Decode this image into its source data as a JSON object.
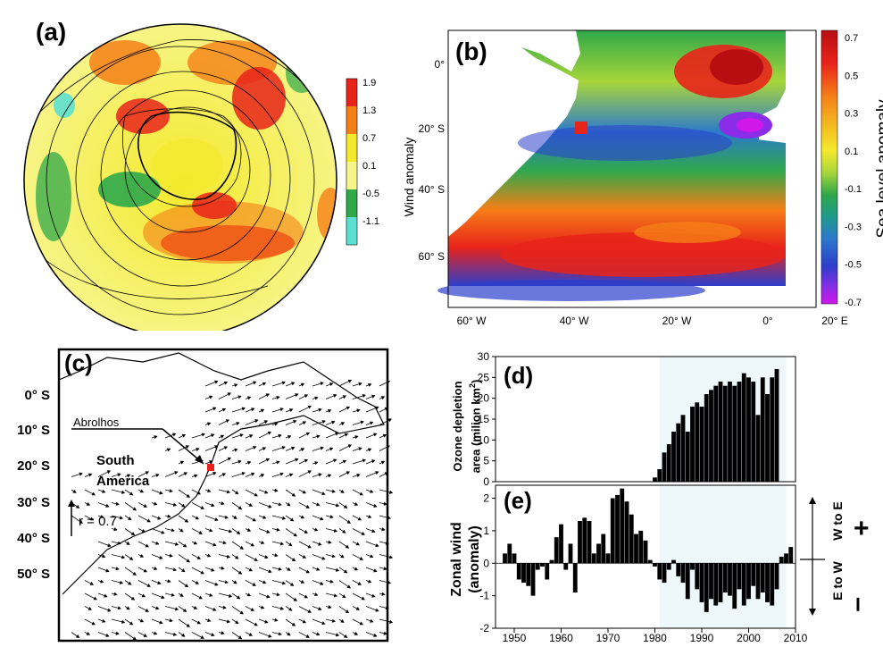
{
  "panel_labels": {
    "a": "(a)",
    "b": "(b)",
    "c": "(c)",
    "d": "(d)",
    "e": "(e)"
  },
  "colors": {
    "red": "#e8231a",
    "orange": "#f57f17",
    "yellow": "#f4e92c",
    "light_yellow": "#f7f58a",
    "green": "#2fa84a",
    "cyan": "#5de0d0",
    "blue": "#2c3fcc",
    "violet": "#d018e8",
    "shade": "#eef8fb"
  },
  "chart_data": [
    {
      "id": "a",
      "type": "heatmap",
      "colorbar": {
        "ticks": [
          "1.9",
          "1.3",
          "0.7",
          "0.1",
          "-0.5",
          "-1.1"
        ],
        "colors": [
          "#e8231a",
          "#f57f17",
          "#f4e92c",
          "#f7f58a",
          "#2fa84a",
          "#5de0d0"
        ]
      }
    },
    {
      "id": "b",
      "type": "heatmap",
      "ylabel": "Wind anomaly",
      "x_ticks": [
        "60° W",
        "40° W",
        "20° W",
        "0°",
        "20° E"
      ],
      "y_ticks": [
        "0°",
        "20° S",
        "40° S",
        "60° S"
      ],
      "colorbar": {
        "label": "Sea level anomaly",
        "ticks": [
          "0.7",
          "0.5",
          "0.3",
          "0.1",
          "-0.1",
          "-0.3",
          "-0.5",
          "-0.7"
        ],
        "colors": [
          "#b80e12",
          "#e8231a",
          "#f57f17",
          "#f4c020",
          "#f4e92c",
          "#a8d63a",
          "#2fa84a",
          "#1f9a8a",
          "#2c7acc",
          "#2c3fcc",
          "#8a2ce8",
          "#d018e8"
        ]
      }
    },
    {
      "id": "c",
      "type": "map",
      "y_ticks": [
        "0° S",
        "10° S",
        "20° S",
        "30° S",
        "40° S",
        "50° S"
      ],
      "annotations": {
        "site": "Abrolhos",
        "region_line1": "South",
        "region_line2": "America",
        "scale": "r = 0.7"
      }
    },
    {
      "id": "d",
      "type": "bar",
      "ylabel_line1": "Ozone depletion",
      "ylabel_line2": "area (milion km",
      "ylabel_sup": "2",
      "ylabel_close": ")",
      "y_ticks": [
        "30",
        "25",
        "20",
        "15",
        "10",
        "5",
        "0"
      ],
      "ylim": [
        0,
        30
      ],
      "x": [
        1980,
        1981,
        1982,
        1983,
        1984,
        1985,
        1986,
        1987,
        1988,
        1989,
        1990,
        1991,
        1992,
        1993,
        1994,
        1995,
        1996,
        1997,
        1998,
        1999,
        2000,
        2001,
        2002,
        2003,
        2004,
        2005,
        2006
      ],
      "values": [
        1,
        3,
        7,
        9,
        12,
        14,
        16,
        12,
        18,
        19,
        18,
        21,
        22,
        23,
        24,
        23,
        24,
        23,
        24,
        26,
        25,
        24,
        16,
        25,
        21,
        25,
        27
      ],
      "shaded_x_range": [
        1981,
        2008
      ]
    },
    {
      "id": "e",
      "type": "bar",
      "ylabel_line1": "Zonal wind",
      "ylabel_line2": "(anomaly)",
      "y_ticks": [
        "2",
        "1",
        "0",
        "-1",
        "-2"
      ],
      "ylim": [
        -2,
        2.4
      ],
      "x_ticks": [
        "1950",
        "1960",
        "1970",
        "1980",
        "1990",
        "2000",
        "2010"
      ],
      "xlim": [
        1946,
        2010
      ],
      "x": [
        1948,
        1949,
        1950,
        1951,
        1952,
        1953,
        1954,
        1955,
        1956,
        1957,
        1958,
        1959,
        1960,
        1961,
        1962,
        1963,
        1964,
        1965,
        1966,
        1967,
        1968,
        1969,
        1970,
        1971,
        1972,
        1973,
        1974,
        1975,
        1976,
        1977,
        1978,
        1979,
        1980,
        1981,
        1982,
        1983,
        1984,
        1985,
        1986,
        1987,
        1988,
        1989,
        1990,
        1991,
        1992,
        1993,
        1994,
        1995,
        1996,
        1997,
        1998,
        1999,
        2000,
        2001,
        2002,
        2003,
        2004,
        2005,
        2006,
        2007,
        2008,
        2009
      ],
      "values": [
        0.3,
        0.6,
        0.3,
        -0.5,
        -0.6,
        -0.7,
        -1.0,
        -0.2,
        -0.1,
        -0.5,
        0.1,
        0.8,
        1.2,
        -0.2,
        0.6,
        -0.9,
        1.3,
        1.4,
        1.3,
        0.3,
        0.6,
        0.9,
        0.3,
        2.0,
        2.1,
        2.3,
        1.9,
        1.5,
        0.9,
        1.0,
        0.7,
        0.1,
        -0.1,
        -0.5,
        -0.6,
        -0.2,
        0.1,
        -0.4,
        -0.6,
        -1.1,
        -0.2,
        -0.8,
        -1.2,
        -1.5,
        -1.1,
        -1.3,
        -1.2,
        -0.9,
        -1.0,
        -1.4,
        -0.8,
        -1.3,
        -1.1,
        -0.7,
        -1.1,
        -0.9,
        -1.2,
        -1.3,
        -0.8,
        0.2,
        0.3,
        0.5
      ],
      "shaded_x_range": [
        1981,
        2008
      ],
      "side_labels": {
        "left": "E to W",
        "right": "W to E",
        "plus": "+",
        "minus": "–"
      }
    }
  ]
}
